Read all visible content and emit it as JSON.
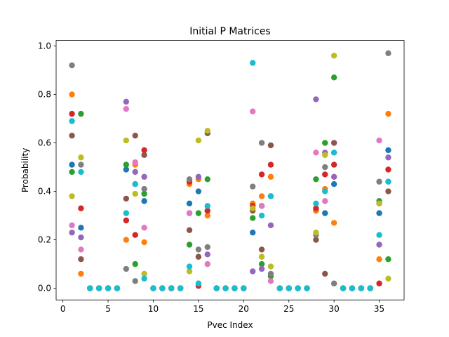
{
  "chart_data": {
    "type": "scatter",
    "title": "Initial P Matrices",
    "xlabel": "Pvec Index",
    "ylabel": "Probability",
    "xlim": [
      -0.75,
      37.75
    ],
    "ylim": [
      -0.048,
      1.0228
    ],
    "xticks": [
      0,
      5,
      10,
      15,
      20,
      25,
      30,
      35
    ],
    "yticks": [
      0.0,
      0.2,
      0.4,
      0.6,
      0.8,
      1.0
    ],
    "xtick_labels": [
      "0",
      "5",
      "10",
      "15",
      "20",
      "25",
      "30",
      "35"
    ],
    "ytick_labels": [
      "0.0",
      "0.2",
      "0.4",
      "0.6",
      "0.8",
      "1.0"
    ],
    "grid": false,
    "colors": [
      "#1f77b4",
      "#ff7f0e",
      "#2ca02c",
      "#d62728",
      "#9467bd",
      "#8c564b",
      "#e377c2",
      "#7f7f7f",
      "#bcbd22",
      "#17becf"
    ],
    "x": [
      1,
      2,
      3,
      4,
      5,
      6,
      7,
      8,
      9,
      10,
      11,
      12,
      13,
      14,
      15,
      16,
      17,
      18,
      19,
      20,
      21,
      22,
      23,
      24,
      25,
      26,
      27,
      28,
      29,
      30,
      31,
      32,
      33,
      34,
      35,
      36
    ],
    "series": [
      {
        "values": [
          0.51,
          0.25,
          0,
          0,
          0,
          0,
          0.49,
          0.43,
          0.36,
          0,
          0,
          0,
          0,
          0.35,
          0.4,
          0.32,
          0,
          0,
          0,
          0,
          0.23,
          0.34,
          0.38,
          0,
          0,
          0,
          0,
          0.32,
          0.31,
          0.43,
          0,
          0,
          0,
          0,
          0.31,
          0.57
        ]
      },
      {
        "values": [
          0.8,
          0.06,
          0,
          0,
          0,
          0,
          0.2,
          0.51,
          0.19,
          0,
          0,
          0,
          0,
          0.43,
          0.45,
          0.3,
          0,
          0,
          0,
          0,
          0.35,
          0.38,
          0.46,
          0,
          0,
          0,
          0,
          0.32,
          0.41,
          0.27,
          0,
          0,
          0,
          0,
          0.12,
          0.72
        ]
      },
      {
        "values": [
          0.48,
          0.72,
          0,
          0,
          0,
          0,
          0.51,
          0.1,
          0.39,
          0,
          0,
          0,
          0,
          0.18,
          0.31,
          0.45,
          0,
          0,
          0,
          0,
          0.29,
          0.1,
          0.05,
          0,
          0,
          0,
          0,
          0.45,
          0.6,
          0.87,
          0,
          0,
          0,
          0,
          0.36,
          0.12
        ]
      },
      {
        "values": [
          0.72,
          0.33,
          0,
          0,
          0,
          0,
          0.28,
          0.22,
          0.57,
          0,
          0,
          0,
          0,
          0.44,
          0.01,
          0.32,
          0,
          0,
          0,
          0,
          0.34,
          0.47,
          0.51,
          0,
          0,
          0,
          0,
          0.33,
          0.47,
          0.51,
          0,
          0,
          0,
          0,
          0.02,
          0.49
        ]
      },
      {
        "values": [
          0.23,
          0.21,
          0,
          0,
          0,
          0,
          0.77,
          0.48,
          0.46,
          0,
          0,
          0,
          0,
          0.31,
          0.46,
          0.14,
          0,
          0,
          0,
          0,
          0.07,
          0.08,
          0.26,
          0,
          0,
          0,
          0,
          0.78,
          0.56,
          0.46,
          0,
          0,
          0,
          0,
          0.18,
          0.54
        ]
      },
      {
        "values": [
          0.63,
          0.12,
          0,
          0,
          0,
          0,
          0.37,
          0.63,
          0.55,
          0,
          0,
          0,
          0,
          0.24,
          0.13,
          0.64,
          0,
          0,
          0,
          0,
          0.32,
          0.16,
          0.59,
          0,
          0,
          0,
          0,
          0.2,
          0.06,
          0.6,
          0,
          0,
          0,
          0,
          0.35,
          0.4
        ]
      },
      {
        "values": [
          0.26,
          0.16,
          0,
          0,
          0,
          0,
          0.74,
          0.52,
          0.25,
          0,
          0,
          0,
          0,
          0.31,
          0.02,
          0.1,
          0,
          0,
          0,
          0,
          0.73,
          0.34,
          0.03,
          0,
          0,
          0,
          0,
          0.56,
          0.36,
          0.56,
          0,
          0,
          0,
          0,
          0.61,
          0.44
        ]
      },
      {
        "values": [
          0.92,
          0.51,
          0,
          0,
          0,
          0,
          0.08,
          0.03,
          0.41,
          0,
          0,
          0,
          0,
          0.45,
          0.16,
          0.17,
          0,
          0,
          0,
          0,
          0.42,
          0.6,
          0.06,
          0,
          0,
          0,
          0,
          0.22,
          0.5,
          0.02,
          0,
          0,
          0,
          0,
          0.44,
          0.97
        ]
      },
      {
        "values": [
          0.38,
          0.54,
          0,
          0,
          0,
          0,
          0.61,
          0.39,
          0.06,
          0,
          0,
          0,
          0,
          0.07,
          0.61,
          0.65,
          0,
          0,
          0,
          0,
          0.33,
          0.13,
          0.09,
          0,
          0,
          0,
          0,
          0.23,
          0.55,
          0.96,
          0,
          0,
          0,
          0,
          0.35,
          0.04
        ]
      },
      {
        "values": [
          0.69,
          0.48,
          0,
          0,
          0,
          0,
          0.31,
          0.43,
          0.04,
          0,
          0,
          0,
          0,
          0.09,
          0.02,
          0.34,
          0,
          0,
          0,
          0,
          0.93,
          0.3,
          0.38,
          0,
          0,
          0,
          0,
          0.35,
          0.4,
          0.56,
          0,
          0,
          0,
          0,
          0.22,
          0.44
        ]
      }
    ]
  }
}
